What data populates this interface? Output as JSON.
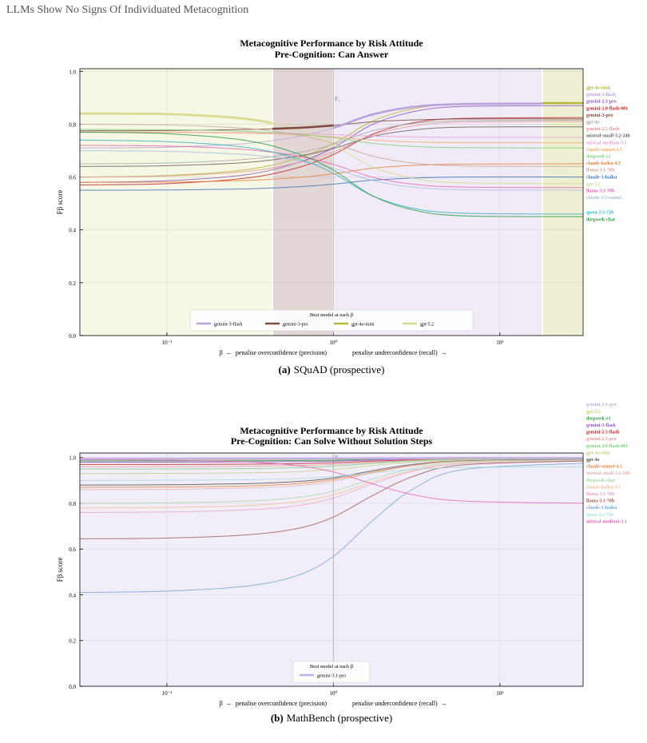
{
  "header": {
    "title": "LLMs Show No Signs Of Individuated Metacognition"
  },
  "captions": [
    {
      "label": "(a)",
      "text": "SQuAD (prospective)"
    },
    {
      "label": "(b)",
      "text": "MathBench (prospective)"
    }
  ],
  "chart_data": [
    {
      "type": "line",
      "title": "Metacognitive Performance by Risk Attitude",
      "subtitle": "Pre-Cognition: Can Answer",
      "xlabel_left": "β  ←  penalise overconfidence (precision)",
      "xlabel_right": "penalise underconfidence (recall)  →",
      "ylabel": "Fβ score",
      "xscale": "log",
      "grid": true,
      "xlim": [
        0.03,
        31.6
      ],
      "ylim": [
        0,
        1.01
      ],
      "xticks": [
        {
          "value": 0.1,
          "label": "10⁻¹"
        },
        {
          "value": 1,
          "label": "10⁰"
        },
        {
          "value": 10,
          "label": "10¹"
        }
      ],
      "yticks": [
        {
          "value": 0,
          "label": "0.0"
        },
        0.2,
        0.4,
        0.6,
        0.8,
        {
          "value": 1,
          "label": "1.0"
        }
      ],
      "annotations": [
        {
          "text": "F₁",
          "x": 1
        }
      ],
      "legend_title": "Best model at each β",
      "legend": "lower center",
      "best_regions": [
        {
          "name": "gemini-3-flash",
          "range": [
            1,
            18
          ]
        },
        {
          "name": "gemini-3-pro",
          "range": [
            0.43,
            1
          ]
        },
        {
          "name": "gpt-4o-mini",
          "range": [
            18,
            31.6
          ]
        },
        {
          "name": "gpt-5.2",
          "range": [
            0.03,
            0.43
          ]
        }
      ],
      "x": [
        0.03,
        0.1,
        0.3,
        0.6,
        1,
        1.7,
        3,
        6,
        31.6
      ],
      "series": [
        {
          "name": "gpt-4o-mini",
          "color": "#b5b83a",
          "values": [
            0.6,
            0.606,
            0.628,
            0.67,
            0.726,
            0.81,
            0.858,
            0.877,
            0.88
          ]
        },
        {
          "name": "gemini-3-flash",
          "color": "#b9a3dc",
          "values": [
            0.71,
            0.713,
            0.727,
            0.752,
            0.786,
            0.836,
            0.865,
            0.876,
            0.878
          ]
        },
        {
          "name": "gemini-2.5-pro",
          "color": "#8e5bc4",
          "values": [
            0.58,
            0.586,
            0.609,
            0.653,
            0.711,
            0.798,
            0.847,
            0.867,
            0.87
          ]
        },
        {
          "name": "gemini-2.0-flash-001",
          "color": "#c0282d",
          "values": [
            0.57,
            0.575,
            0.596,
            0.634,
            0.685,
            0.761,
            0.805,
            0.822,
            0.825
          ]
        },
        {
          "name": "gemini-3-pro",
          "color": "#7f4a3f",
          "values": [
            0.775,
            0.776,
            0.78,
            0.786,
            0.795,
            0.809,
            0.816,
            0.82,
            0.82
          ]
        },
        {
          "name": "gpt-4o",
          "color": "#aaaaaa",
          "values": [
            0.65,
            0.653,
            0.667,
            0.691,
            0.724,
            0.774,
            0.802,
            0.813,
            0.815
          ]
        },
        {
          "name": "gemini-2.5-flash",
          "color": "#e59a9a",
          "values": [
            0.6,
            0.604,
            0.621,
            0.653,
            0.695,
            0.758,
            0.793,
            0.808,
            0.81
          ]
        },
        {
          "name": "mistral-small-3.2-24b",
          "color": "#6f6262",
          "values": [
            0.64,
            0.643,
            0.655,
            0.678,
            0.708,
            0.753,
            0.778,
            0.789,
            0.79
          ]
        },
        {
          "name": "mistral-medium-3.1",
          "color": "#e8a6d6",
          "values": [
            0.77,
            0.77,
            0.768,
            0.765,
            0.761,
            0.755,
            0.752,
            0.75,
            0.75
          ]
        },
        {
          "name": "claude-sonnet-4.5",
          "color": "#f4ad6e",
          "values": [
            0.77,
            0.769,
            0.766,
            0.76,
            0.752,
            0.74,
            0.733,
            0.73,
            0.73
          ]
        },
        {
          "name": "deepseek-r1",
          "color": "#7fd07f",
          "values": [
            0.78,
            0.779,
            0.773,
            0.763,
            0.749,
            0.728,
            0.716,
            0.711,
            0.71
          ]
        },
        {
          "name": "claude-haiku-4.5",
          "color": "#e8823a",
          "values": [
            0.58,
            0.581,
            0.587,
            0.598,
            0.612,
            0.633,
            0.644,
            0.649,
            0.65
          ]
        },
        {
          "name": "llama-3.1-70b",
          "color": "#c9a89a",
          "values": [
            0.8,
            0.797,
            0.784,
            0.76,
            0.728,
            0.68,
            0.653,
            0.642,
            0.64
          ]
        },
        {
          "name": "claude-3-haiku",
          "color": "#3e77b8",
          "values": [
            0.55,
            0.551,
            0.555,
            0.563,
            0.573,
            0.588,
            0.596,
            0.6,
            0.6
          ]
        },
        {
          "name": "gpt-5.2",
          "color": "#d6dc8a",
          "values": [
            0.84,
            0.838,
            0.82,
            0.78,
            0.72,
            0.64,
            0.595,
            0.578,
            0.575
          ]
        },
        {
          "name": "llama-3.3-70b",
          "color": "#e268b4",
          "values": [
            0.72,
            0.717,
            0.704,
            0.68,
            0.648,
            0.6,
            0.573,
            0.562,
            0.56
          ]
        },
        {
          "name": "claude-3.5-sonnet",
          "color": "#a9bde2",
          "values": [
            0.7,
            0.697,
            0.685,
            0.663,
            0.633,
            0.588,
            0.562,
            0.552,
            0.55
          ]
        },
        {
          "name": "qwen-2.5-72b",
          "color": "#35b5c0",
          "values": [
            0.74,
            0.734,
            0.712,
            0.67,
            0.614,
            0.53,
            0.482,
            0.463,
            0.46
          ]
        },
        {
          "name": "deepseek-chat",
          "color": "#2f9a48",
          "values": [
            0.77,
            0.764,
            0.738,
            0.69,
            0.626,
            0.53,
            0.476,
            0.453,
            0.45
          ]
        }
      ]
    },
    {
      "type": "line",
      "title": "Metacognitive Performance by Risk Attitude",
      "subtitle": "Pre-Cognition: Can Solve Without Solution Steps",
      "xlabel_left": "β  ←  penalise overconfidence (precision)",
      "xlabel_right": "penalise underconfidence (recall)  →",
      "ylabel": "Fβ score",
      "xscale": "log",
      "grid": true,
      "xlim": [
        0.03,
        31.6
      ],
      "ylim": [
        0,
        1.02
      ],
      "xticks": [
        {
          "value": 0.1,
          "label": "10⁻¹"
        },
        {
          "value": 1,
          "label": "10⁰"
        },
        {
          "value": 10,
          "label": "10¹"
        }
      ],
      "yticks": [
        {
          "value": 0,
          "label": "0.0"
        },
        0.2,
        0.4,
        0.6,
        0.8,
        {
          "value": 1,
          "label": "1.0"
        }
      ],
      "annotations": [
        {
          "text": "F₁",
          "x": 1
        }
      ],
      "legend_title": "Best model at each β",
      "legend": "lower center",
      "best_regions": [
        {
          "name": "gemini-3.1-pro",
          "range": [
            0.03,
            31.6
          ]
        }
      ],
      "x": [
        0.03,
        0.1,
        0.3,
        0.6,
        1,
        1.7,
        3,
        6,
        31.6
      ],
      "series": [
        {
          "name": "gemini-3.1-pro",
          "color": "#c5b0e2",
          "values": [
            0.995,
            0.995,
            0.995,
            0.995,
            0.996,
            0.997,
            0.997,
            0.998,
            0.998
          ]
        },
        {
          "name": "gpt-5.2",
          "color": "#c8d470",
          "values": [
            0.99,
            0.99,
            0.99,
            0.991,
            0.992,
            0.994,
            0.996,
            0.998,
            0.998
          ]
        },
        {
          "name": "deepseek-r1",
          "color": "#2f9a48",
          "values": [
            0.985,
            0.985,
            0.986,
            0.987,
            0.988,
            0.992,
            0.995,
            0.996,
            0.997
          ]
        },
        {
          "name": "gemini-3-flash",
          "color": "#8e5bc4",
          "values": [
            0.98,
            0.98,
            0.981,
            0.982,
            0.984,
            0.989,
            0.993,
            0.995,
            0.996
          ]
        },
        {
          "name": "gemini-2.5-flash",
          "color": "#c0282d",
          "values": [
            0.97,
            0.97,
            0.971,
            0.973,
            0.977,
            0.984,
            0.99,
            0.994,
            0.995
          ]
        },
        {
          "name": "gemini-2.5-pro",
          "color": "#e59a9a",
          "values": [
            0.96,
            0.96,
            0.962,
            0.965,
            0.97,
            0.979,
            0.988,
            0.993,
            0.995
          ]
        },
        {
          "name": "gemini-2.0-flash-001",
          "color": "#7fd07f",
          "values": [
            0.95,
            0.95,
            0.952,
            0.956,
            0.962,
            0.974,
            0.985,
            0.992,
            0.994
          ]
        },
        {
          "name": "gpt-4o-mini",
          "color": "#c9cf8a",
          "values": [
            0.93,
            0.931,
            0.933,
            0.938,
            0.948,
            0.965,
            0.98,
            0.99,
            0.993
          ]
        },
        {
          "name": "gpt-4o",
          "color": "#555555",
          "values": [
            0.88,
            0.881,
            0.886,
            0.895,
            0.911,
            0.942,
            0.97,
            0.986,
            0.992
          ]
        },
        {
          "name": "claude-sonnet-4.5",
          "color": "#e8823a",
          "values": [
            0.87,
            0.871,
            0.876,
            0.886,
            0.904,
            0.936,
            0.966,
            0.984,
            0.99
          ]
        },
        {
          "name": "mistral-small-3.2-24b",
          "color": "#e4b4b4",
          "values": [
            0.86,
            0.861,
            0.867,
            0.877,
            0.896,
            0.932,
            0.964,
            0.984,
            0.99
          ]
        },
        {
          "name": "deepseek-chat",
          "color": "#a8d8a8",
          "values": [
            0.8,
            0.802,
            0.81,
            0.825,
            0.853,
            0.905,
            0.952,
            0.981,
            0.99
          ]
        },
        {
          "name": "claude-haiku-4.5",
          "color": "#f4c09a",
          "values": [
            0.78,
            0.782,
            0.79,
            0.807,
            0.837,
            0.893,
            0.944,
            0.975,
            0.985
          ]
        },
        {
          "name": "llama-3.3-70b",
          "color": "#e8a8c8",
          "values": [
            0.76,
            0.762,
            0.771,
            0.789,
            0.823,
            0.884,
            0.94,
            0.974,
            0.985
          ]
        },
        {
          "name": "llama-3.1-70b",
          "color": "#a0605a",
          "values": [
            0.645,
            0.648,
            0.662,
            0.689,
            0.74,
            0.832,
            0.917,
            0.968,
            0.985
          ]
        },
        {
          "name": "claude-3-haiku",
          "color": "#7aa8d8",
          "values": [
            0.41,
            0.416,
            0.438,
            0.483,
            0.568,
            0.721,
            0.862,
            0.947,
            0.975
          ]
        },
        {
          "name": "qwen-2.5-72b",
          "color": "#a8dcdc",
          "values": [
            0.9,
            0.901,
            0.903,
            0.908,
            0.917,
            0.933,
            0.948,
            0.957,
            0.96
          ]
        },
        {
          "name": "mistral-medium-3.1",
          "color": "#e268b4",
          "values": [
            0.99,
            0.988,
            0.981,
            0.965,
            0.937,
            0.886,
            0.838,
            0.81,
            0.8
          ]
        }
      ]
    }
  ]
}
